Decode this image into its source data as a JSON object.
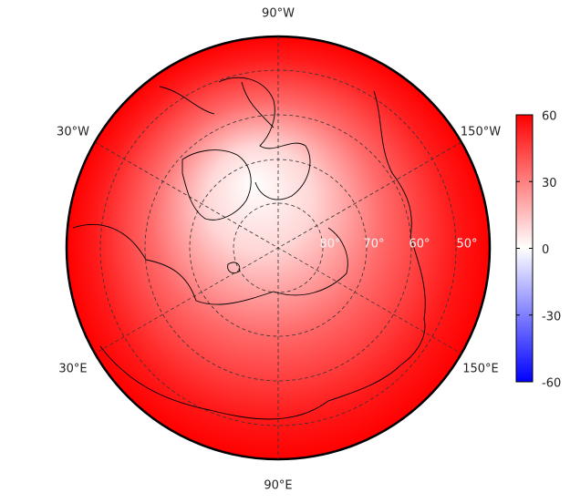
{
  "map": {
    "longitude_labels": [
      "90°W",
      "30°W",
      "150°W",
      "30°E",
      "150°E",
      "90°E"
    ],
    "latitude_labels": [
      "80°",
      "70°",
      "60°",
      "50°"
    ],
    "colorbar": {
      "lim": [
        -60,
        60
      ],
      "ticks": [
        60,
        30,
        0,
        -30,
        -60
      ],
      "colors": [
        "#0000ff",
        "#ffffff",
        "#ff0000"
      ]
    }
  }
}
